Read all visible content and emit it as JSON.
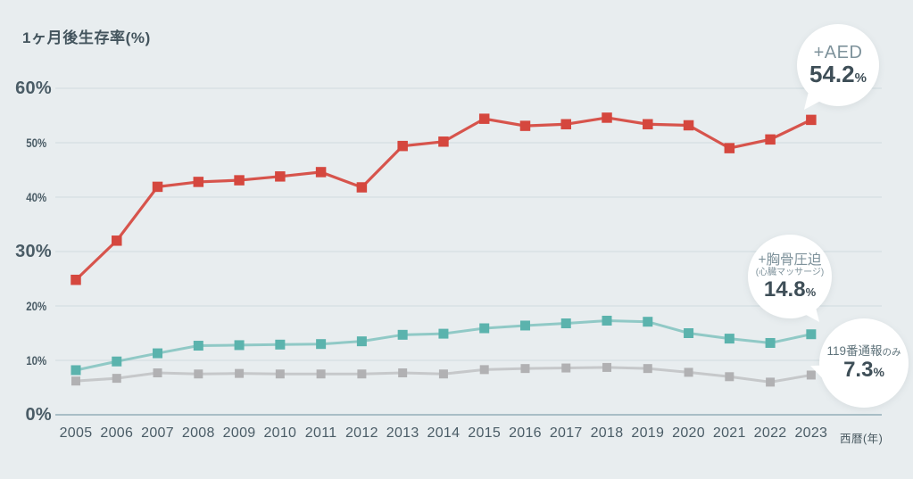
{
  "page": {
    "background": "#e8edef"
  },
  "header": {
    "title": "1ヶ月後生存率(%)"
  },
  "axes": {
    "x_label": "西暦(年)",
    "y_ticks": [
      {
        "value": 60,
        "label": "60%",
        "emphasis": true
      },
      {
        "value": 50,
        "label": "50%",
        "emphasis": false
      },
      {
        "value": 40,
        "label": "40%",
        "emphasis": false
      },
      {
        "value": 30,
        "label": "30%",
        "emphasis": true
      },
      {
        "value": 20,
        "label": "20%",
        "emphasis": false
      },
      {
        "value": 10,
        "label": "10%",
        "emphasis": false
      },
      {
        "value": 0,
        "label": "0%",
        "emphasis": true
      }
    ]
  },
  "chart_data": {
    "type": "line",
    "title": "1ヶ月後生存率(%)",
    "xlabel": "西暦(年)",
    "ylabel": "1ヶ月後生存率(%)",
    "ylim": [
      0,
      60
    ],
    "grid": "horizontal",
    "legend_position": "callout-bubbles-right",
    "x": [
      2005,
      2006,
      2007,
      2008,
      2009,
      2010,
      2011,
      2012,
      2013,
      2014,
      2015,
      2016,
      2017,
      2018,
      2019,
      2020,
      2021,
      2022,
      2023
    ],
    "series": [
      {
        "name": "+AED",
        "color": "#d5473e",
        "marker": "square",
        "values": [
          24.8,
          32.0,
          41.9,
          42.8,
          43.1,
          43.8,
          44.6,
          41.8,
          49.4,
          50.2,
          54.4,
          53.1,
          53.4,
          54.6,
          53.4,
          53.2,
          49.0,
          50.6,
          54.2
        ]
      },
      {
        "name": "+胸骨圧迫(心臓マッサージ)",
        "color": "#5bb3ad",
        "marker": "square",
        "values": [
          8.2,
          9.8,
          11.3,
          12.7,
          12.8,
          12.9,
          13.0,
          13.5,
          14.7,
          14.9,
          15.9,
          16.4,
          16.8,
          17.3,
          17.1,
          15.0,
          14.0,
          13.2,
          14.8
        ]
      },
      {
        "name": "119番通報のみ",
        "color": "#b1b1b3",
        "marker": "square",
        "values": [
          6.2,
          6.7,
          7.7,
          7.5,
          7.6,
          7.5,
          7.5,
          7.5,
          7.7,
          7.5,
          8.3,
          8.5,
          8.6,
          8.7,
          8.5,
          7.8,
          7.0,
          6.0,
          7.3
        ]
      }
    ]
  },
  "callouts": {
    "aed": {
      "label": "+AED",
      "value": "54.2",
      "unit": "%"
    },
    "chest": {
      "label": "+胸骨圧迫",
      "sublabel": "(心臓マッサージ)",
      "value": "14.8",
      "unit": "%"
    },
    "call": {
      "label": "119番通報",
      "label_suffix": "のみ",
      "value": "7.3",
      "unit": "%"
    }
  }
}
